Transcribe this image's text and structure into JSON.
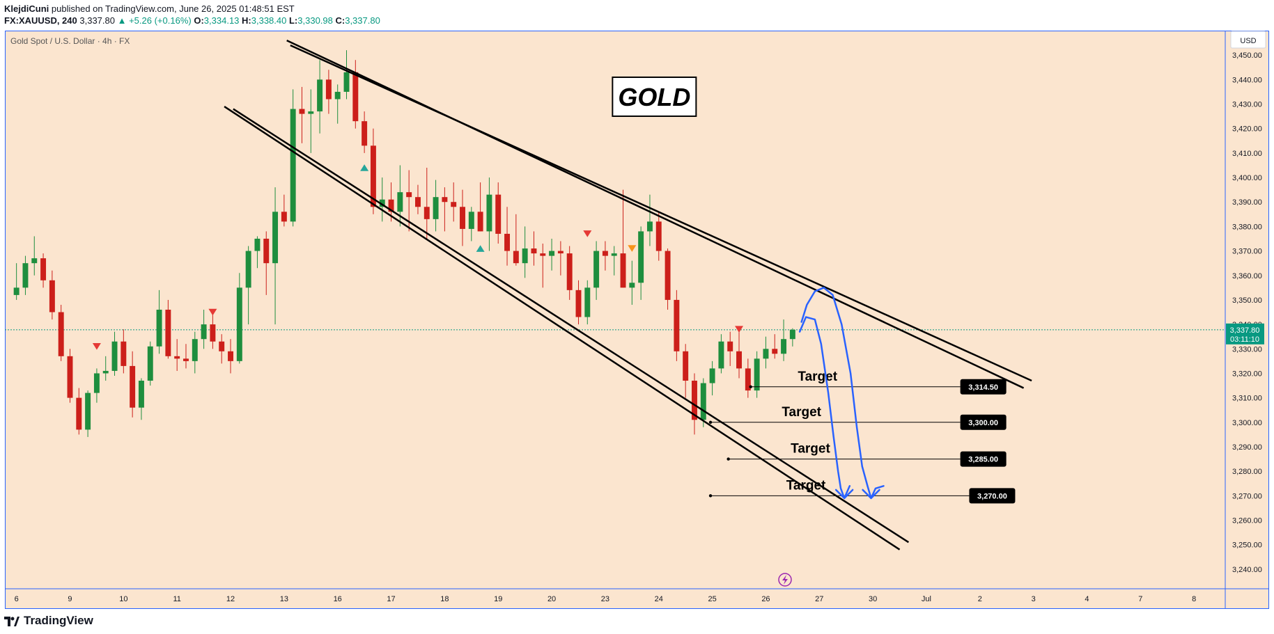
{
  "header": {
    "author": "KlejdiCuni",
    "published_text": "published on TradingView.com, June 26, 2025 01:48:51 EST",
    "symbol": "FX:XAUUSD, 240",
    "last": "3,337.80",
    "change": "▲ +5.26 (+0.16%)",
    "o_label": "O:",
    "o": "3,334.13",
    "h_label": "H:",
    "h": "3,338.40",
    "l_label": "L:",
    "l": "3,330.98",
    "c_label": "C:",
    "c": "3,337.80"
  },
  "footer": {
    "brand": "TradingView"
  },
  "colors": {
    "background": "#fbe5cf",
    "bull": "#1e8e3e",
    "bear": "#cc1f1a",
    "projection": "#2962ff",
    "price_label": "#089981"
  },
  "chart_data": {
    "type": "candlestick",
    "title": "Gold Spot / U.S. Dollar · 4h · FX",
    "currency": "USD",
    "y_ticks": [
      "3,240.00",
      "3,250.00",
      "3,260.00",
      "3,270.00",
      "3,280.00",
      "3,290.00",
      "3,300.00",
      "3,310.00",
      "3,320.00",
      "3,330.00",
      "3,340.00",
      "3,350.00",
      "3,360.00",
      "3,370.00",
      "3,380.00",
      "3,390.00",
      "3,400.00",
      "3,410.00",
      "3,420.00",
      "3,430.00",
      "3,440.00",
      "3,450.00"
    ],
    "y_tick_values": [
      3240,
      3250,
      3260,
      3270,
      3280,
      3290,
      3300,
      3310,
      3320,
      3330,
      3340,
      3350,
      3360,
      3370,
      3380,
      3390,
      3400,
      3410,
      3420,
      3430,
      3440,
      3450
    ],
    "ylim": [
      3232,
      3460
    ],
    "x_ticks": [
      {
        "label": "6",
        "x": 0
      },
      {
        "label": "9",
        "x": 6
      },
      {
        "label": "10",
        "x": 12
      },
      {
        "label": "11",
        "x": 18
      },
      {
        "label": "12",
        "x": 24
      },
      {
        "label": "13",
        "x": 30
      },
      {
        "label": "16",
        "x": 36
      },
      {
        "label": "17",
        "x": 42
      },
      {
        "label": "18",
        "x": 48
      },
      {
        "label": "19",
        "x": 54
      },
      {
        "label": "20",
        "x": 60
      },
      {
        "label": "23",
        "x": 66
      },
      {
        "label": "24",
        "x": 72
      },
      {
        "label": "25",
        "x": 78
      },
      {
        "label": "26",
        "x": 84
      },
      {
        "label": "27",
        "x": 90
      },
      {
        "label": "30",
        "x": 96
      },
      {
        "label": "Jul",
        "x": 102
      },
      {
        "label": "2",
        "x": 108
      },
      {
        "label": "3",
        "x": 114
      },
      {
        "label": "4",
        "x": 120
      },
      {
        "label": "7",
        "x": 126
      },
      {
        "label": "8",
        "x": 132
      }
    ],
    "xlim": [
      -1.3,
      135.5
    ],
    "ohlc": [
      [
        3352,
        3365,
        3350,
        3355
      ],
      [
        3355,
        3368,
        3352,
        3365
      ],
      [
        3365,
        3376,
        3360,
        3367
      ],
      [
        3367,
        3369,
        3355,
        3358
      ],
      [
        3358,
        3362,
        3342,
        3345
      ],
      [
        3345,
        3348,
        3325,
        3327
      ],
      [
        3327,
        3330,
        3308,
        3310
      ],
      [
        3310,
        3314,
        3295,
        3297
      ],
      [
        3297,
        3313,
        3294,
        3312
      ],
      [
        3312,
        3322,
        3308,
        3320
      ],
      [
        3320,
        3327,
        3317,
        3321
      ],
      [
        3321,
        3337,
        3319,
        3333
      ],
      [
        3333,
        3338,
        3320,
        3323
      ],
      [
        3323,
        3329,
        3302,
        3306
      ],
      [
        3306,
        3318,
        3301,
        3317
      ],
      [
        3317,
        3333,
        3315,
        3331
      ],
      [
        3331,
        3354,
        3328,
        3346
      ],
      [
        3346,
        3350,
        3326,
        3327
      ],
      [
        3327,
        3334,
        3321,
        3326
      ],
      [
        3326,
        3332,
        3322,
        3325
      ],
      [
        3325,
        3337,
        3320,
        3334
      ],
      [
        3334,
        3346,
        3330,
        3340
      ],
      [
        3340,
        3345,
        3330,
        3333
      ],
      [
        3333,
        3336,
        3324,
        3329
      ],
      [
        3329,
        3334,
        3320,
        3325
      ],
      [
        3325,
        3361,
        3324,
        3355
      ],
      [
        3355,
        3372,
        3340,
        3370
      ],
      [
        3370,
        3376,
        3363,
        3375
      ],
      [
        3375,
        3378,
        3352,
        3365
      ],
      [
        3365,
        3396,
        3340,
        3386
      ],
      [
        3386,
        3393,
        3380,
        3382
      ],
      [
        3382,
        3436,
        3380,
        3428
      ],
      [
        3428,
        3437,
        3414,
        3426
      ],
      [
        3426,
        3436,
        3410,
        3427
      ],
      [
        3427,
        3448,
        3418,
        3440
      ],
      [
        3440,
        3444,
        3426,
        3432
      ],
      [
        3432,
        3438,
        3422,
        3435
      ],
      [
        3435,
        3452,
        3432,
        3443
      ],
      [
        3443,
        3448,
        3420,
        3423
      ],
      [
        3423,
        3427,
        3410,
        3413
      ],
      [
        3413,
        3420,
        3385,
        3388
      ],
      [
        3388,
        3400,
        3382,
        3391
      ],
      [
        3391,
        3398,
        3382,
        3386
      ],
      [
        3386,
        3405,
        3380,
        3394
      ],
      [
        3394,
        3403,
        3378,
        3392
      ],
      [
        3392,
        3397,
        3385,
        3388
      ],
      [
        3388,
        3404,
        3375,
        3383
      ],
      [
        3383,
        3399,
        3378,
        3392
      ],
      [
        3392,
        3396,
        3378,
        3390
      ],
      [
        3390,
        3398,
        3382,
        3388
      ],
      [
        3388,
        3395,
        3372,
        3379
      ],
      [
        3379,
        3388,
        3374,
        3386
      ],
      [
        3386,
        3398,
        3378,
        3378
      ],
      [
        3378,
        3400,
        3370,
        3393
      ],
      [
        3393,
        3398,
        3373,
        3377
      ],
      [
        3377,
        3388,
        3364,
        3370
      ],
      [
        3370,
        3385,
        3364,
        3365
      ],
      [
        3365,
        3380,
        3359,
        3371
      ],
      [
        3371,
        3378,
        3364,
        3369
      ],
      [
        3369,
        3373,
        3355,
        3368
      ],
      [
        3368,
        3375,
        3362,
        3370
      ],
      [
        3370,
        3374,
        3360,
        3369
      ],
      [
        3369,
        3372,
        3350,
        3354
      ],
      [
        3354,
        3358,
        3340,
        3343
      ],
      [
        3343,
        3358,
        3340,
        3355
      ],
      [
        3355,
        3374,
        3350,
        3370
      ],
      [
        3370,
        3374,
        3362,
        3368
      ],
      [
        3368,
        3372,
        3360,
        3369
      ],
      [
        3369,
        3395,
        3355,
        3355
      ],
      [
        3355,
        3366,
        3348,
        3357
      ],
      [
        3357,
        3380,
        3350,
        3378
      ],
      [
        3378,
        3393,
        3372,
        3382
      ],
      [
        3382,
        3386,
        3366,
        3370
      ],
      [
        3370,
        3371,
        3346,
        3350
      ],
      [
        3350,
        3354,
        3325,
        3329
      ],
      [
        3329,
        3332,
        3310,
        3317
      ],
      [
        3317,
        3320,
        3295,
        3301
      ],
      [
        3301,
        3318,
        3298,
        3316
      ],
      [
        3316,
        3325,
        3311,
        3322
      ],
      [
        3322,
        3336,
        3320,
        3333
      ],
      [
        3333,
        3337,
        3323,
        3329
      ],
      [
        3329,
        3338,
        3318,
        3322
      ],
      [
        3322,
        3326,
        3310,
        3313
      ],
      [
        3313,
        3329,
        3310,
        3326
      ],
      [
        3326,
        3335,
        3322,
        3330
      ],
      [
        3330,
        3336,
        3326,
        3328
      ],
      [
        3328,
        3342,
        3325,
        3334
      ],
      [
        3334,
        3338.4,
        3330.98,
        3337.8
      ]
    ],
    "channel_lines": [
      {
        "from": [
          30.3,
          3456
        ],
        "to": [
          112.9,
          3314
        ]
      },
      {
        "from": [
          30.7,
          3454
        ],
        "to": [
          113.8,
          3317
        ]
      },
      {
        "from": [
          23.3,
          3429
        ],
        "to": [
          99.0,
          3248
        ]
      },
      {
        "from": [
          24.3,
          3428
        ],
        "to": [
          100.0,
          3251
        ]
      }
    ],
    "targets": [
      {
        "label": "Target",
        "value_label": "3,314.50",
        "value": 3314.5,
        "x_start": 82.3,
        "text_x": 89.8,
        "box_x": 105.8
      },
      {
        "label": "Target",
        "value_label": "3,300.00",
        "value": 3300,
        "x_start": 77.8,
        "text_x": 88.0,
        "box_x": 105.8
      },
      {
        "label": "Target",
        "value_label": "3,285.00",
        "value": 3285,
        "x_start": 79.8,
        "text_x": 89.0,
        "box_x": 105.8
      },
      {
        "label": "Target",
        "value_label": "3,270.00",
        "value": 3270,
        "x_start": 77.8,
        "text_x": 88.5,
        "box_x": 106.8
      }
    ],
    "projection_paths": [
      [
        [
          88.0,
          3341
        ],
        [
          88.6,
          3348
        ],
        [
          89.5,
          3353.5
        ],
        [
          90.5,
          3355
        ],
        [
          91.5,
          3352
        ],
        [
          92.5,
          3340
        ],
        [
          93.5,
          3320
        ],
        [
          94.2,
          3298
        ],
        [
          94.8,
          3282
        ],
        [
          95.4,
          3274
        ],
        [
          95.8,
          3269
        ],
        [
          96.3,
          3273
        ],
        [
          97.2,
          3274
        ]
      ],
      [
        [
          87.8,
          3337
        ],
        [
          88.5,
          3343
        ],
        [
          89.5,
          3342
        ],
        [
          90.2,
          3332
        ],
        [
          91.0,
          3312
        ],
        [
          91.6,
          3294
        ],
        [
          92.1,
          3280
        ],
        [
          92.4,
          3273
        ],
        [
          92.8,
          3269
        ],
        [
          93.4,
          3274
        ]
      ]
    ],
    "arrow_tips": [
      [
        95.8,
        3269
      ],
      [
        92.8,
        3269
      ]
    ],
    "markers": [
      {
        "x": 9,
        "y": 3331,
        "type": "down",
        "color": "#e53935"
      },
      {
        "x": 22,
        "y": 3345,
        "type": "down",
        "color": "#e53935"
      },
      {
        "x": 39,
        "y": 3404,
        "type": "up",
        "color": "#26a69a"
      },
      {
        "x": 52,
        "y": 3371,
        "type": "up",
        "color": "#26a69a"
      },
      {
        "x": 64,
        "y": 3377,
        "type": "down",
        "color": "#e53935"
      },
      {
        "x": 69,
        "y": 3371,
        "type": "down",
        "color": "#f7931a"
      },
      {
        "x": 81,
        "y": 3338,
        "type": "down",
        "color": "#e53935"
      }
    ],
    "annotation": "GOLD",
    "annotation_pos": [
      71.5,
      3433
    ],
    "last_price_label": "3,337.80",
    "countdown_label": "03:11:10",
    "last_price": 3337.8,
    "grid": false,
    "legend": "none"
  }
}
